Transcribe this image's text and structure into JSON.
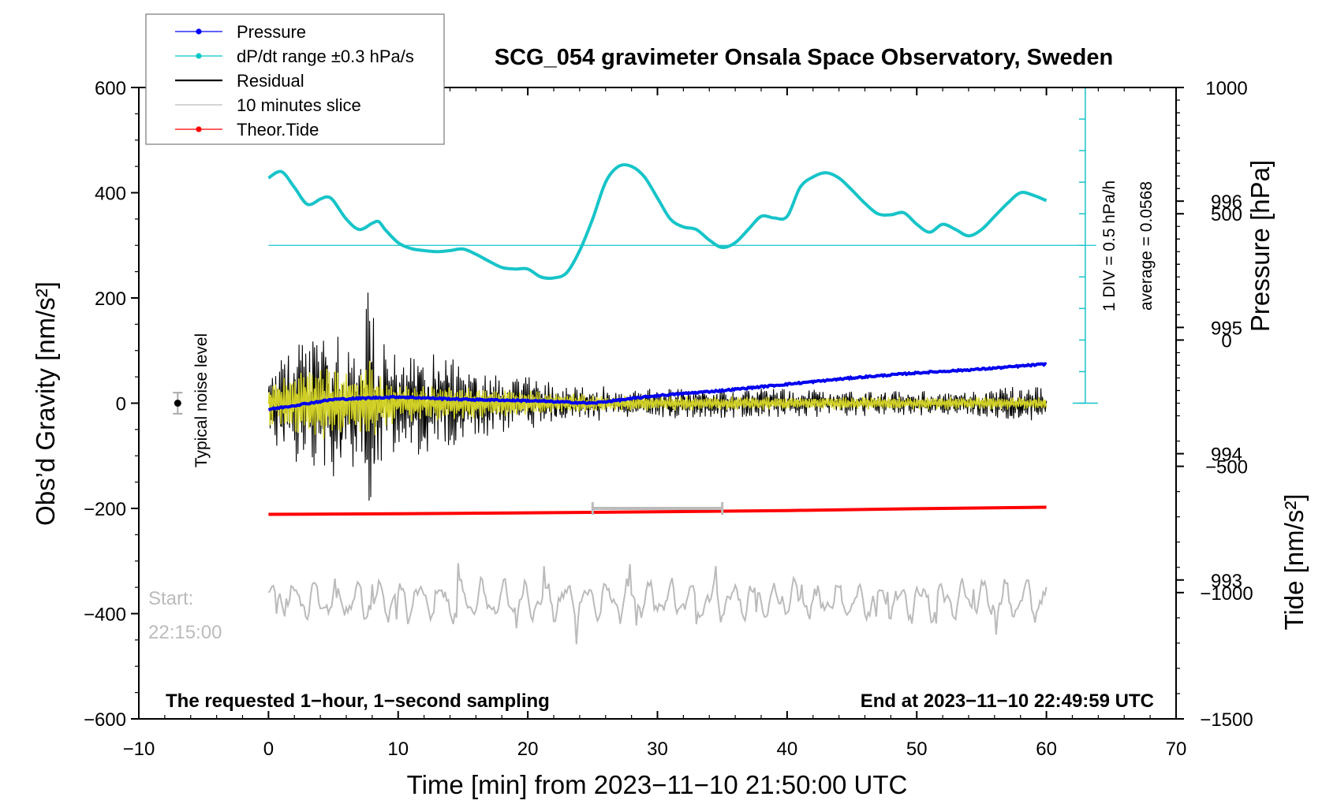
{
  "chart_data": {
    "type": "line",
    "title": "SCG_054 gravimeter Onsala Space Observatory, Sweden",
    "xlabel": "Time [min] from 2023−11−10 21:50:00 UTC",
    "ylabel_left": "Obs’d Gravity [nm/s²]",
    "ylabel_right_top": "Pressure [hPa]",
    "ylabel_right_bottom": "Tide [nm/s²]",
    "xlim": [
      -10,
      70
    ],
    "ylim": [
      -600,
      600
    ],
    "xticks": [
      -10,
      0,
      10,
      20,
      30,
      40,
      50,
      60,
      70
    ],
    "xtick_labels": [
      "−10",
      "0",
      "10",
      "20",
      "30",
      "40",
      "50",
      "60",
      "70"
    ],
    "yticks": [
      600,
      400,
      200,
      0,
      -200,
      -400,
      -600
    ],
    "ytick_labels": [
      "600",
      "400",
      "200",
      "0",
      "−200",
      "−400",
      "−600"
    ],
    "pressure_axis": {
      "range": [
        991.9,
        996.9
      ],
      "ticks": [
        993,
        994,
        995,
        996
      ],
      "tick_labels": [
        "993",
        "994",
        "995",
        "996"
      ]
    },
    "tide_axis": {
      "range": [
        -1500,
        1000
      ],
      "ticks": [
        1000,
        500,
        0,
        -500,
        -1000,
        -1500
      ],
      "tick_labels": [
        "1000",
        "500",
        "0",
        "−500",
        "−1000",
        "−1500"
      ]
    },
    "legend": {
      "position": "top-left",
      "entries": [
        {
          "label": "Pressure",
          "color": "#0000ff",
          "marker": true
        },
        {
          "label": "dP/dt range ±0.3 hPa/s",
          "color": "#00c8c8",
          "marker": true
        },
        {
          "label": "Residual",
          "color": "#000000",
          "marker": false
        },
        {
          "label": "10 minutes slice",
          "color": "#bbbbbb",
          "marker": false
        },
        {
          "label": "Theor.Tide",
          "color": "#ff0000",
          "marker": true
        }
      ]
    },
    "colors": {
      "pressure": "#0000ee",
      "dpdt": "#17c4c8",
      "residual": "#000000",
      "smoothed": "#d8d828",
      "slice": "#bbbbbb",
      "tide": "#ff0000"
    },
    "series": [
      {
        "name": "Pressure",
        "axis": "pressure",
        "x": [
          0,
          5,
          10,
          15,
          20,
          25,
          30,
          35,
          40,
          45,
          50,
          55,
          60
        ],
        "values": [
          994.35,
          994.43,
          994.45,
          994.43,
          994.42,
          994.4,
          994.46,
          994.5,
          994.55,
          994.6,
          994.64,
          994.67,
          994.71
        ]
      },
      {
        "name": "dP/dt",
        "axis": "left",
        "x": [
          0,
          1,
          2,
          3,
          4,
          4.5,
          5,
          6,
          7,
          8,
          8.5,
          9,
          10,
          11,
          12,
          13,
          14,
          15,
          16,
          17,
          18,
          19,
          20,
          21,
          22,
          23,
          24,
          25,
          26,
          27,
          28,
          29,
          30,
          31,
          32,
          33,
          34,
          35,
          36,
          37,
          38,
          39,
          40,
          41,
          42,
          43,
          44,
          45,
          46,
          47,
          48,
          49,
          50,
          51,
          52,
          53,
          54,
          55,
          56,
          57,
          58,
          59,
          60
        ],
        "values": [
          428,
          440,
          410,
          378,
          388,
          392,
          385,
          350,
          330,
          342,
          345,
          330,
          305,
          294,
          290,
          288,
          290,
          293,
          283,
          270,
          258,
          255,
          255,
          240,
          238,
          248,
          290,
          350,
          420,
          450,
          450,
          430,
          390,
          350,
          335,
          330,
          310,
          296,
          305,
          330,
          355,
          352,
          355,
          410,
          430,
          438,
          428,
          405,
          380,
          360,
          358,
          362,
          340,
          325,
          340,
          330,
          318,
          330,
          355,
          380,
          400,
          395,
          385
        ]
      },
      {
        "name": "Residual",
        "axis": "left",
        "x_range": [
          0,
          60
        ],
        "envelope_x": [
          0,
          2,
          4,
          6,
          7,
          7.8,
          8.5,
          10,
          12,
          14,
          16,
          18,
          20,
          22,
          25,
          30,
          35,
          40,
          45,
          50,
          55,
          58,
          60
        ],
        "envelope_values": [
          80,
          110,
          150,
          140,
          130,
          250,
          120,
          100,
          100,
          90,
          70,
          60,
          55,
          40,
          35,
          30,
          30,
          28,
          25,
          25,
          25,
          40,
          30
        ]
      },
      {
        "name": "Smoothed residual",
        "axis": "left",
        "x_range": [
          0,
          60
        ],
        "envelope_x": [
          0,
          2,
          4,
          6,
          7,
          7.8,
          8.5,
          10,
          15,
          20,
          25,
          30,
          40,
          50,
          60
        ],
        "envelope_values": [
          40,
          55,
          70,
          55,
          60,
          85,
          50,
          35,
          30,
          25,
          15,
          14,
          12,
          12,
          12
        ]
      },
      {
        "name": "10 minutes slice",
        "axis": "left",
        "x_range": [
          0,
          60
        ],
        "baseline": -375,
        "amplitude": 35
      },
      {
        "name": "Theor.Tide",
        "axis": "tide",
        "x": [
          0,
          10,
          20,
          30,
          40,
          50,
          60
        ],
        "values": [
          -690,
          -688,
          -684,
          -680,
          -675,
          -668,
          -662
        ]
      }
    ],
    "noise_level": {
      "label": "Typical noise level",
      "x": -7,
      "y": 0,
      "err": 20
    },
    "slice_marker": {
      "x_start": 25,
      "x_end": 35,
      "y": -200
    },
    "dpdt_scale": {
      "label1": "1 DIV = 0.5 hPa/h",
      "label2": "average = 0.0568",
      "x": 63,
      "y_min": 0,
      "y_max": 600,
      "reference_y": 300,
      "divisions": 10
    },
    "start_label": "Start:",
    "start_time": "22:15:00",
    "footnote_left": "The requested 1−hour, 1−second sampling",
    "footnote_right": "End at 2023−11−10 22:49:59 UTC"
  }
}
